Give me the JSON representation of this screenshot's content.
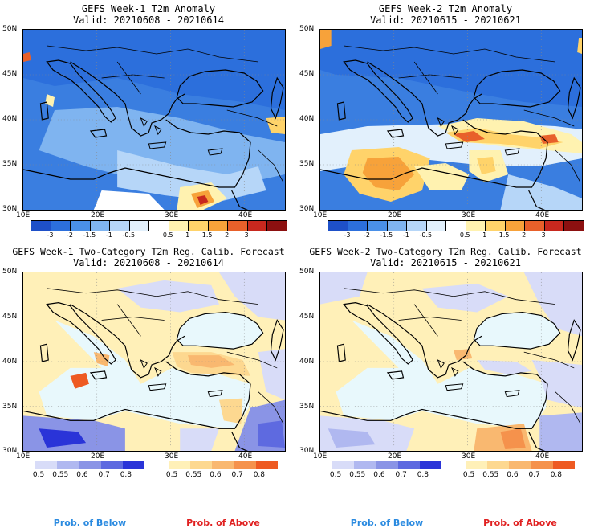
{
  "panels": [
    {
      "title_line1": "GEFS Week-1 T2m Anomaly",
      "title_line2": "Valid: 20210608 - 20210614"
    },
    {
      "title_line1": "GEFS Week-2 T2m Anomaly",
      "title_line2": "Valid: 20210615 - 20210621"
    },
    {
      "title_line1": "GEFS Week-1 Two-Category T2m Reg. Calib. Forecast",
      "title_line2": "Valid: 20210608 - 20210614"
    },
    {
      "title_line1": "GEFS Week-2 Two-Category T2m Reg. Calib. Forecast",
      "title_line2": "Valid: 20210615 - 20210621"
    }
  ],
  "axes": {
    "lat_labels": [
      "50N",
      "45N",
      "40N",
      "35N",
      "30N"
    ],
    "lon_labels": [
      "10E",
      "20E",
      "30E",
      "40E"
    ]
  },
  "anomaly_colorbar": {
    "colors": [
      "#1e50c8",
      "#2c6fdc",
      "#4a90e8",
      "#7fb4f0",
      "#b6d6f8",
      "#e2f0fc",
      "#ffffff",
      "#fff2b0",
      "#ffd36a",
      "#f7a23a",
      "#e8602a",
      "#c8281e",
      "#8c1010"
    ],
    "labels": [
      "-3",
      "-2",
      "-1.5",
      "-1",
      "-0.5",
      "0.5",
      "1",
      "1.5",
      "2",
      "3"
    ]
  },
  "prob_below_bar": {
    "colors": [
      "#d8dcf8",
      "#b0b8f0",
      "#8a94e6",
      "#5e6ae0",
      "#2a34d8"
    ],
    "labels": [
      "0.5",
      "0.55",
      "0.6",
      "0.7",
      "0.8"
    ]
  },
  "prob_above_bar": {
    "colors": [
      "#fff0b8",
      "#fdd890",
      "#f9b870",
      "#f5924c",
      "#ee5a22"
    ],
    "labels": [
      "0.5",
      "0.55",
      "0.6",
      "0.7",
      "0.8"
    ]
  },
  "footer": {
    "below_label": "Prob. of Below",
    "above_label": "Prob. of Above",
    "below_color": "#2a8ae0",
    "above_color": "#e02020"
  }
}
